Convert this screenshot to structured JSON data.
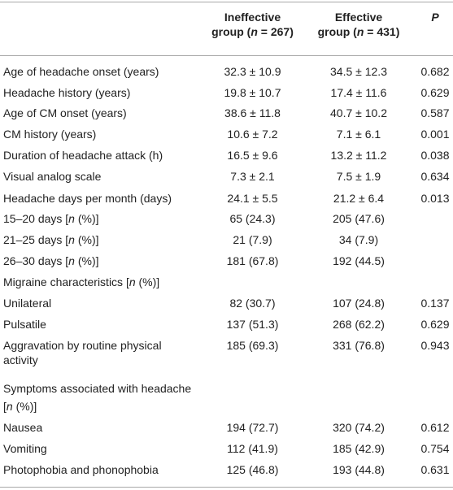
{
  "table": {
    "columns": {
      "ineffective_l1": "Ineffective",
      "ineffective_l2a": "group (",
      "ineffective_n": "n",
      "ineffective_l2b": " = 267)",
      "effective_l1": "Effective",
      "effective_l2a": "group (",
      "effective_n": "n",
      "effective_l2b": " = 431)",
      "p": "P"
    },
    "rows": [
      {
        "label": "Age of headache onset (years)",
        "ineffective": "32.3 ± 10.9",
        "effective": "34.5 ± 12.3",
        "p": "0.682"
      },
      {
        "label": "Headache history (years)",
        "ineffective": "19.8 ± 10.7",
        "effective": "17.4 ± 11.6",
        "p": "0.629"
      },
      {
        "label": "Age of CM onset (years)",
        "ineffective": "38.6 ± 11.8",
        "effective": "40.7 ± 10.2",
        "p": "0.587"
      },
      {
        "label": "CM history (years)",
        "ineffective": "10.6 ± 7.2",
        "effective": "7.1 ± 6.1",
        "p": "0.001"
      },
      {
        "label": "Duration of headache attack (h)",
        "ineffective": "16.5 ± 9.6",
        "effective": "13.2 ± 11.2",
        "p": "0.038"
      },
      {
        "label": "Visual analog scale",
        "ineffective": "7.3 ± 2.1",
        "effective": "7.5 ± 1.9",
        "p": "0.634"
      },
      {
        "label": "Headache days per month (days)",
        "ineffective": "24.1 ± 5.5",
        "effective": "21.2 ± 6.4",
        "p": "0.013"
      },
      {
        "label_a": "15–20 days [",
        "label_n": "n",
        "label_b": " (%)]",
        "ineffective": "65 (24.3)",
        "effective": "205 (47.6)",
        "p": ""
      },
      {
        "label_a": "21–25 days [",
        "label_n": "n",
        "label_b": " (%)]",
        "ineffective": "21 (7.9)",
        "effective": "34 (7.9)",
        "p": ""
      },
      {
        "label_a": "26–30 days [",
        "label_n": "n",
        "label_b": " (%)]",
        "ineffective": "181 (67.8)",
        "effective": "192 (44.5)",
        "p": ""
      },
      {
        "label_a": "Migraine characteristics [",
        "label_n": "n",
        "label_b": " (%)]",
        "ineffective": "",
        "effective": "",
        "p": ""
      },
      {
        "label": "Unilateral",
        "ineffective": "82 (30.7)",
        "effective": "107 (24.8)",
        "p": "0.137"
      },
      {
        "label": "Pulsatile",
        "ineffective": "137 (51.3)",
        "effective": "268 (62.2)",
        "p": "0.629"
      },
      {
        "label_l1": "Aggravation by routine physical",
        "label_l2": "activity",
        "ineffective": "185 (69.3)",
        "effective": "331 (76.8)",
        "p": "0.943"
      },
      {
        "label_l1": "Symptoms associated with headache",
        "label_l2a": "[",
        "label_n": "n",
        "label_l2b": " (%)]",
        "ineffective": "",
        "effective": "",
        "p": ""
      },
      {
        "label": "Nausea",
        "ineffective": "194 (72.7)",
        "effective": "320 (74.2)",
        "p": "0.612"
      },
      {
        "label": "Vomiting",
        "ineffective": "112 (41.9)",
        "effective": "185 (42.9)",
        "p": "0.754"
      },
      {
        "label": "Photophobia and phonophobia",
        "ineffective": "125 (46.8)",
        "effective": "193 (44.8)",
        "p": "0.631"
      }
    ]
  }
}
